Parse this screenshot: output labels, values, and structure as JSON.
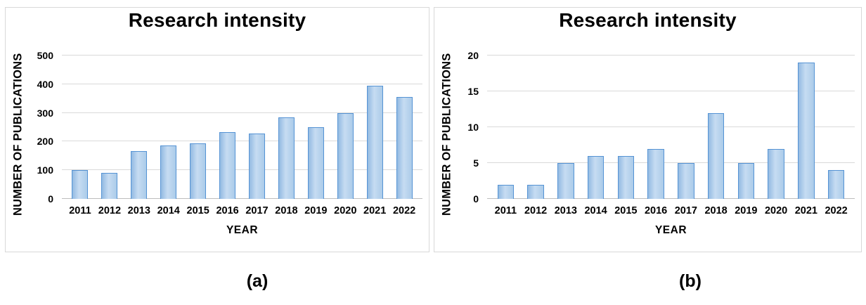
{
  "styles": {
    "text": "#000000",
    "panel_border": "#d8d8d8",
    "gridline": "#d9d9d9",
    "axis_line": "#bdbdbd",
    "bar_border": "#5593d4",
    "bar_fill_left": "#93bae2",
    "bar_fill_mid": "#c6dcf2",
    "bar_fill_right": "#abcbe9"
  },
  "chart_data": [
    {
      "type": "bar",
      "title": "Research intensity",
      "xlabel": "YEAR",
      "ylabel": "NUMBER OF PUBLICATIONS",
      "caption": "(a)",
      "categories": [
        "2011",
        "2012",
        "2013",
        "2014",
        "2015",
        "2016",
        "2017",
        "2018",
        "2019",
        "2020",
        "2021",
        "2022"
      ],
      "values": [
        101,
        90,
        166,
        187,
        194,
        232,
        227,
        284,
        251,
        298,
        395,
        356
      ],
      "ylim": [
        0,
        500
      ],
      "yticks": [
        0,
        100,
        200,
        300,
        400,
        500
      ],
      "grid": true,
      "legend": "none"
    },
    {
      "type": "bar",
      "title": "Research intensity",
      "xlabel": "YEAR",
      "ylabel": "NUMBER OF PUBLICATIONS",
      "caption": "(b)",
      "categories": [
        "2011",
        "2012",
        "2013",
        "2014",
        "2015",
        "2016",
        "2017",
        "2018",
        "2019",
        "2020",
        "2021",
        "2022"
      ],
      "values": [
        2,
        2,
        5,
        6,
        6,
        7,
        5,
        12,
        5,
        7,
        19,
        4
      ],
      "ylim": [
        0,
        20
      ],
      "yticks": [
        0,
        5,
        10,
        15,
        20
      ],
      "grid": true,
      "legend": "none"
    }
  ]
}
